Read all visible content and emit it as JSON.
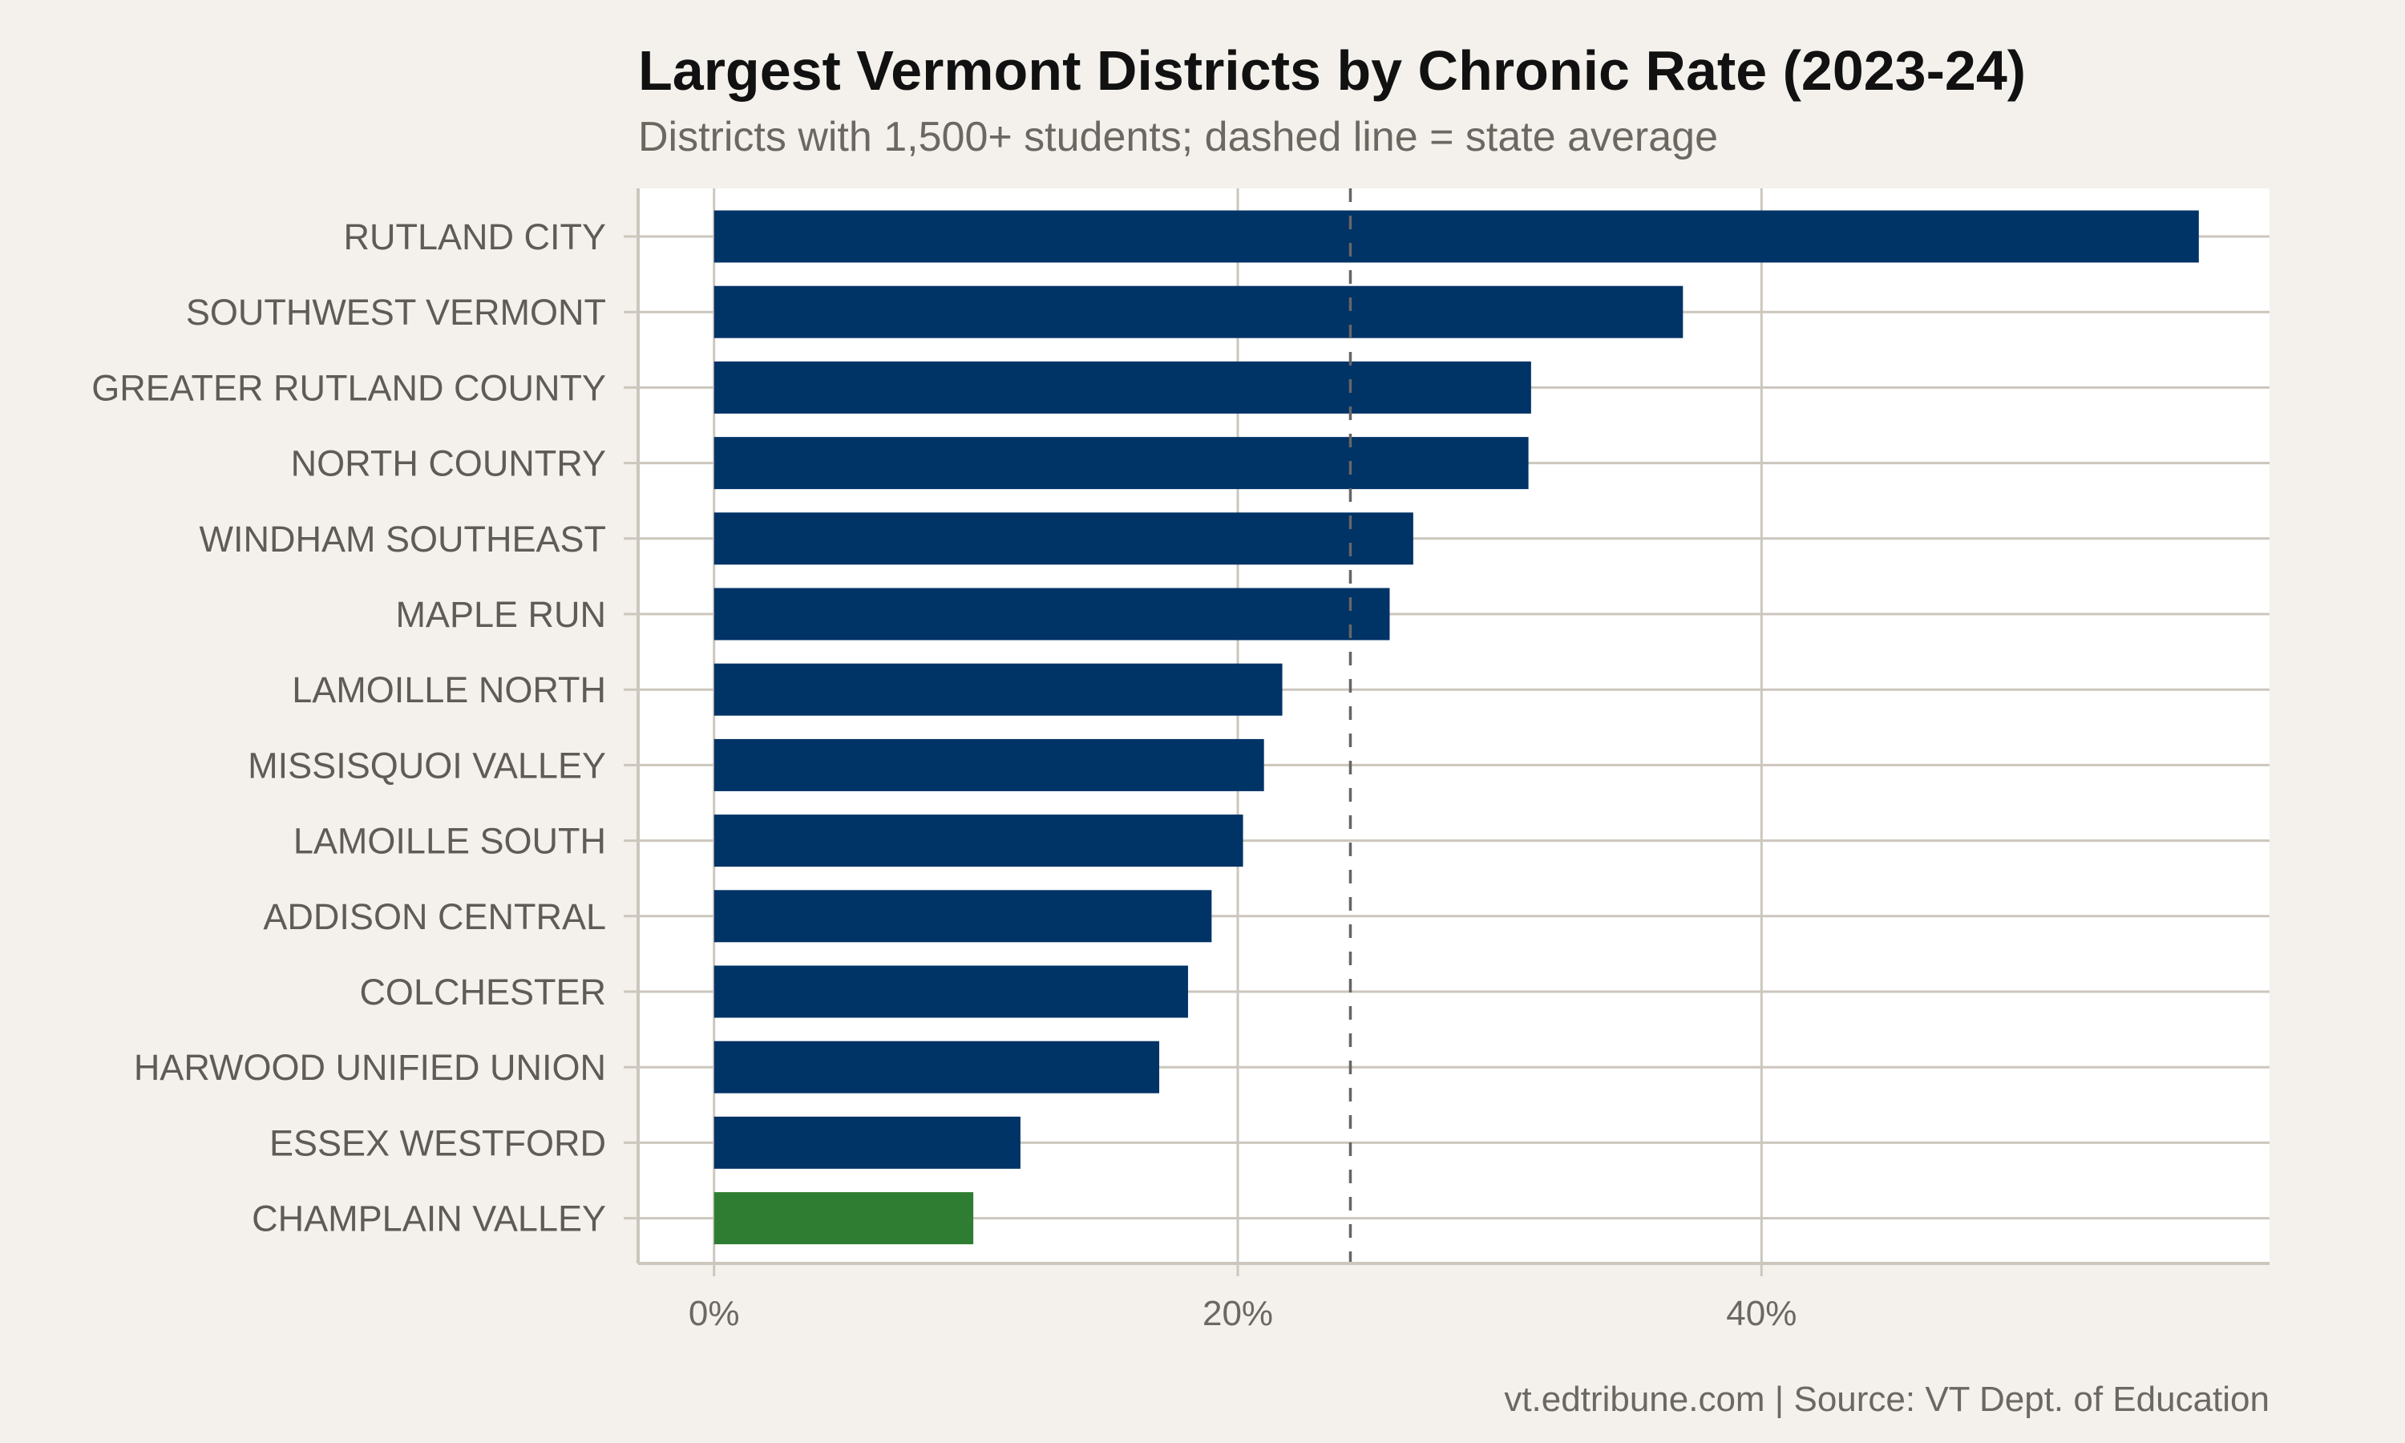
{
  "chart_data": {
    "type": "bar",
    "orientation": "horizontal",
    "title": "Largest Vermont Districts by Chronic Rate (2023-24)",
    "subtitle": "Districts with 1,500+ students; dashed line = state average",
    "caption": "vt.edtribune.com | Source: VT Dept. of Education",
    "xlabel": "",
    "ylabel": "",
    "xlim": [
      -2.9,
      59.4
    ],
    "x_ticks": [
      0,
      20,
      40
    ],
    "x_tick_labels": [
      "0%",
      "20%",
      "40%"
    ],
    "grid": true,
    "reference_line": {
      "value": 24.3,
      "style": "dashed",
      "color": "#666666"
    },
    "categories": [
      "RUTLAND CITY",
      "SOUTHWEST VERMONT",
      "GREATER RUTLAND COUNTY",
      "NORTH COUNTRY",
      "WINDHAM SOUTHEAST",
      "MAPLE RUN",
      "LAMOILLE NORTH",
      "MISSISQUOI VALLEY",
      "LAMOILLE SOUTH",
      "ADDISON CENTRAL",
      "COLCHESTER",
      "HARWOOD UNIFIED UNION",
      "ESSEX WESTFORD",
      "CHAMPLAIN VALLEY"
    ],
    "values": [
      56.7,
      37.0,
      31.2,
      31.1,
      26.7,
      25.8,
      21.7,
      21.0,
      20.2,
      19.0,
      18.1,
      17.0,
      11.7,
      9.9
    ],
    "colors": {
      "default": "#003366",
      "highlight": "#2e7d32",
      "highlight_category": "CHAMPLAIN VALLEY"
    }
  }
}
